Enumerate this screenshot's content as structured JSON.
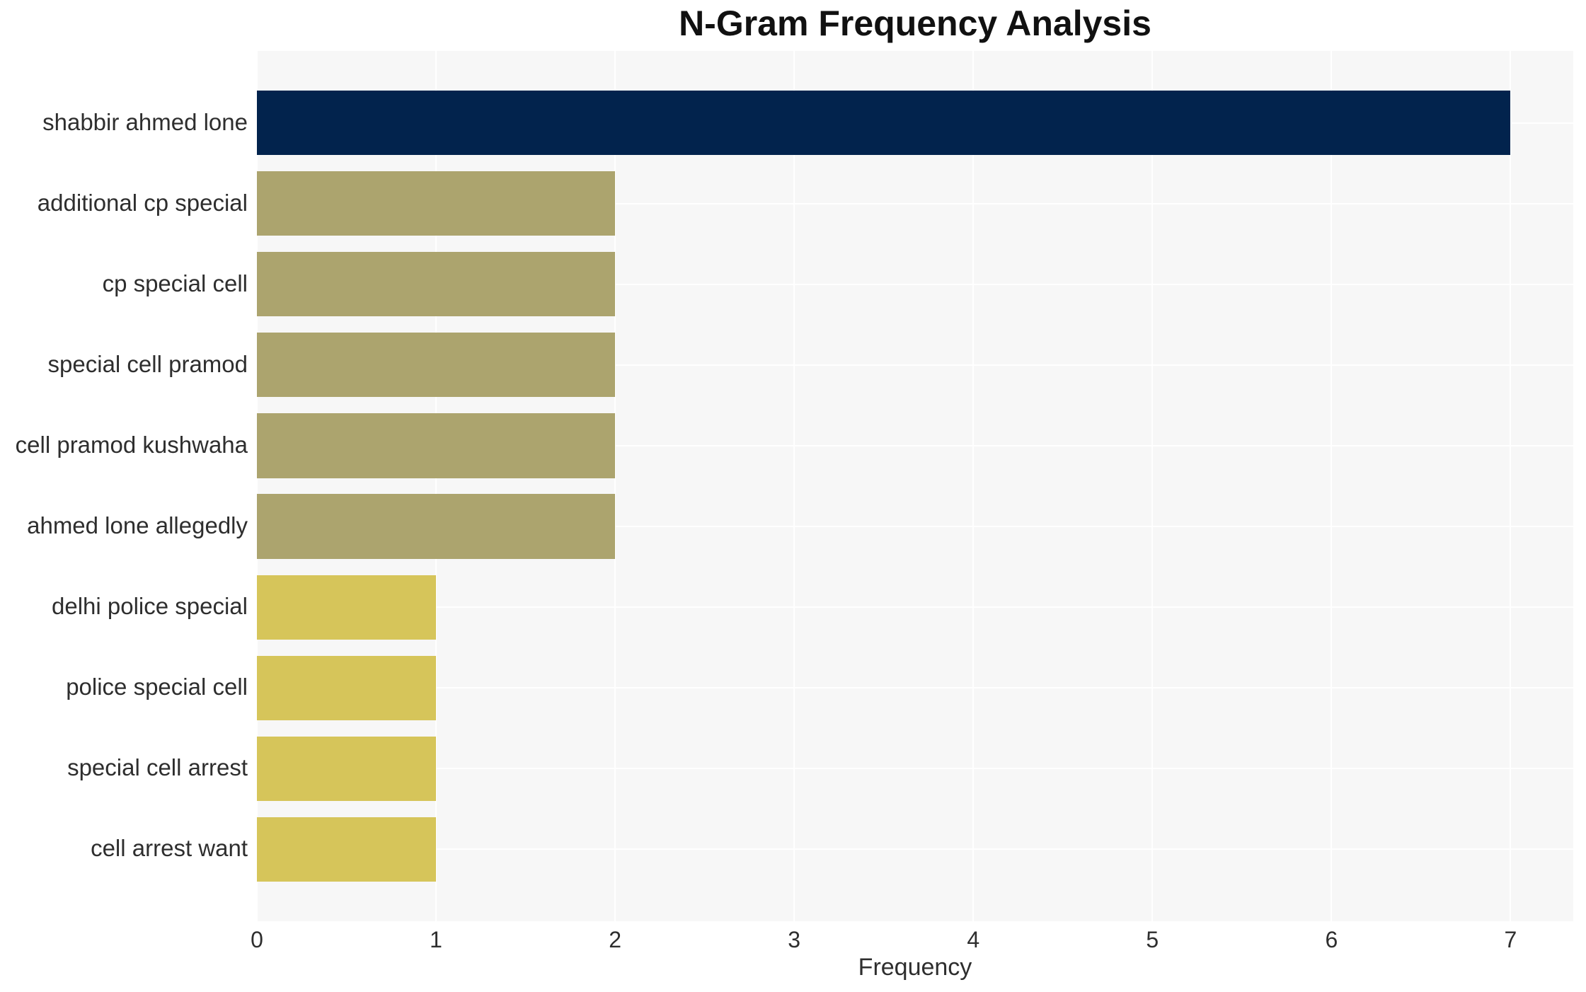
{
  "chart_data": {
    "type": "bar",
    "orientation": "horizontal",
    "title": "N-Gram Frequency Analysis",
    "xlabel": "Frequency",
    "ylabel": "",
    "categories": [
      "shabbir ahmed lone",
      "additional cp special",
      "cp special cell",
      "special cell pramod",
      "cell pramod kushwaha",
      "ahmed lone allegedly",
      "delhi police special",
      "police special cell",
      "special cell arrest",
      "cell arrest want"
    ],
    "values": [
      7,
      2,
      2,
      2,
      2,
      2,
      1,
      1,
      1,
      1
    ],
    "xticks": [
      0,
      1,
      2,
      3,
      4,
      5,
      6,
      7
    ],
    "xlim": [
      0,
      7.35
    ],
    "grid": true,
    "legend": false,
    "bar_colors": [
      "#02234d",
      "#aca46e",
      "#aca46e",
      "#aca46e",
      "#aca46e",
      "#aca46e",
      "#d6c55a",
      "#d6c55a",
      "#d6c55a",
      "#d6c55a"
    ],
    "plot_background": "#f7f7f7",
    "gridline_color": "#ffffff",
    "title_color": "#111111",
    "tick_color": "#2e2e2e"
  }
}
